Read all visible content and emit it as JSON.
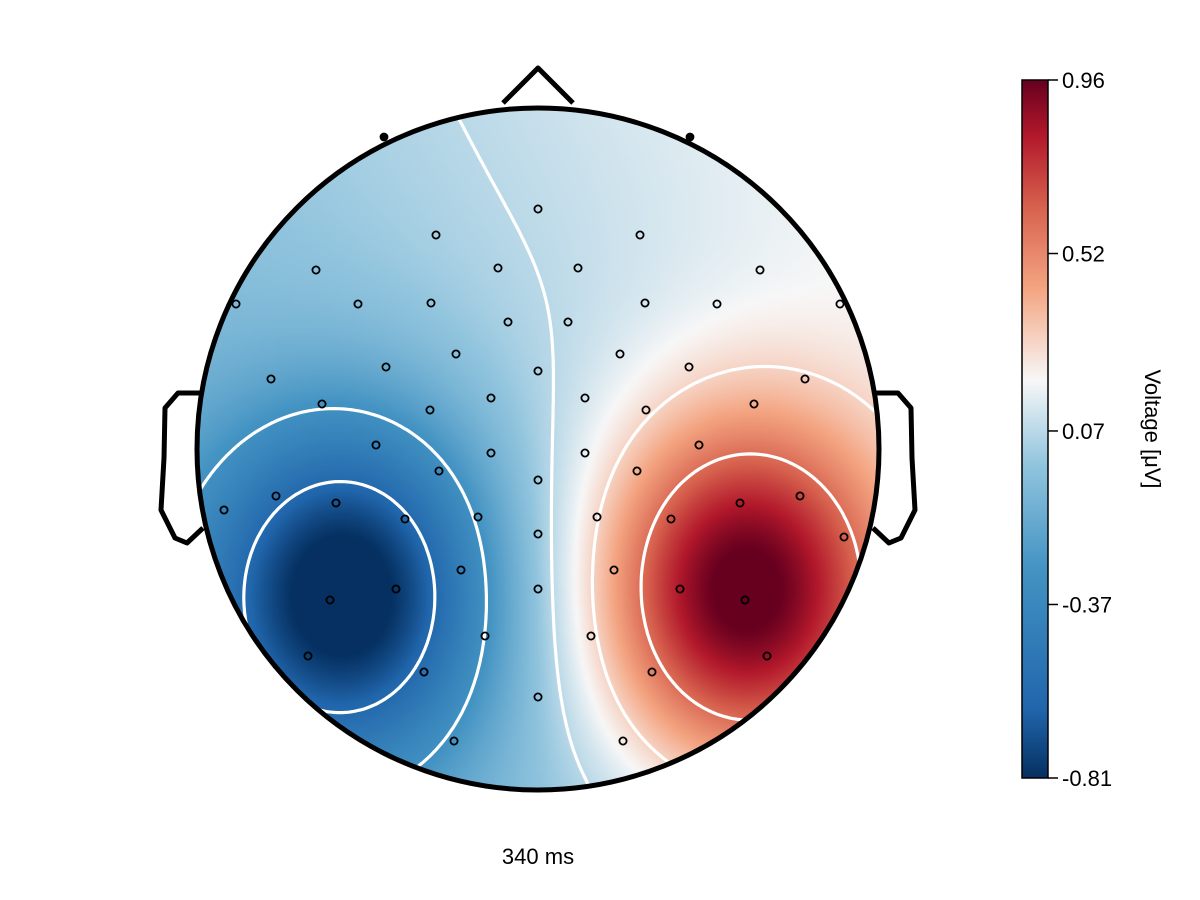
{
  "chart_data": {
    "type": "heatmap",
    "subtype": "eeg-topoplot",
    "time_label": "340 ms",
    "colorbar": {
      "label": "Voltage [μV]",
      "min": -0.81,
      "max": 0.96,
      "ticks": [
        0.96,
        0.52,
        0.07,
        -0.37,
        -0.81
      ],
      "tick_labels": [
        "0.96",
        "0.52",
        "0.07",
        "-0.37",
        "-0.81"
      ],
      "colormap": "RdBu_r"
    },
    "contour_levels": [
      -0.6,
      -0.3,
      0.07,
      0.3,
      0.6
    ],
    "sources": [
      {
        "name": "negative-peak",
        "x": -0.56,
        "y": -0.42,
        "amplitude": -0.81
      },
      {
        "name": "positive-peak",
        "x": 0.6,
        "y": -0.42,
        "amplitude": 0.96
      }
    ]
  },
  "colors": {
    "head_outline": "#000000",
    "contour": "#ffffff",
    "electrode": "#000000"
  }
}
